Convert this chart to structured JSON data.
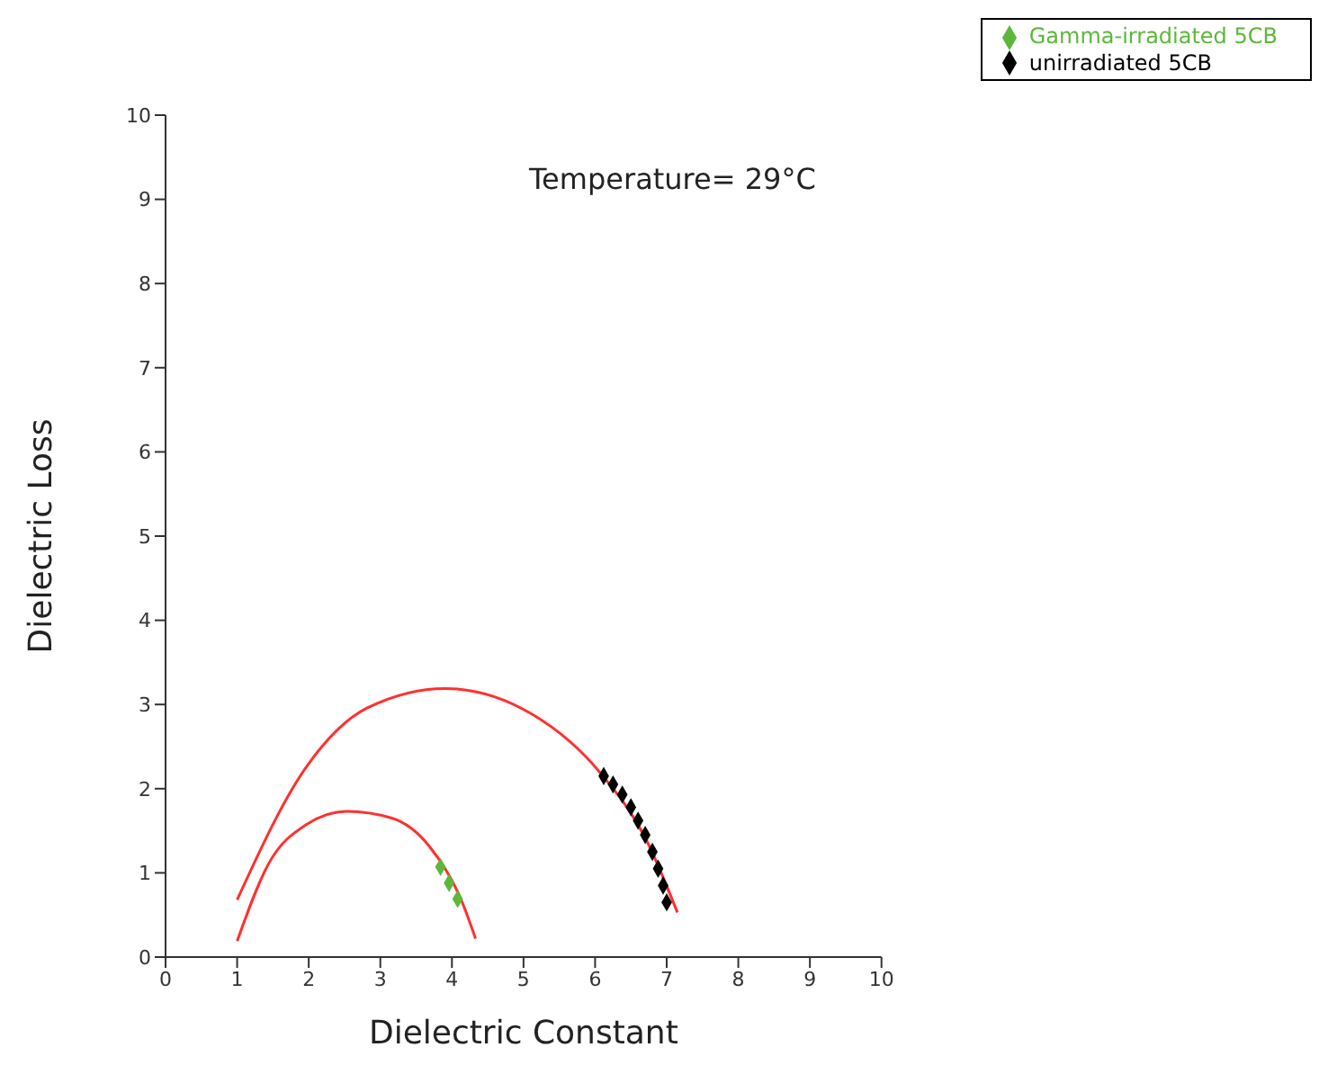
{
  "chart_data": {
    "type": "scatter",
    "xlabel": "Dielectric Constant",
    "ylabel": "Dielectric Loss",
    "annotations": [
      "Temperature= 29°C"
    ],
    "xlim": [
      0,
      10
    ],
    "ylim": [
      0,
      10
    ],
    "xticks": [
      0,
      1,
      2,
      3,
      4,
      5,
      6,
      7,
      8,
      9,
      10
    ],
    "yticks": [
      0,
      1,
      2,
      3,
      4,
      5,
      6,
      7,
      8,
      9,
      10
    ],
    "grid": false,
    "legend": "top right",
    "series": [
      {
        "name": "Gamma-irradiated  5CB",
        "color": "#5cb83a",
        "marker": "diamond",
        "x": [
          3.84,
          3.96,
          4.08
        ],
        "values": [
          1.07,
          0.88,
          0.69
        ]
      },
      {
        "name": "unirradiated 5CB",
        "color": "#000000",
        "marker": "diamond",
        "x": [
          6.12,
          6.25,
          6.38,
          6.5,
          6.6,
          6.7,
          6.8,
          6.88,
          6.95,
          7.0
        ],
        "values": [
          2.15,
          2.05,
          1.93,
          1.78,
          1.62,
          1.45,
          1.25,
          1.05,
          0.85,
          0.65
        ]
      },
      {
        "type": "line",
        "color": "#ff3030",
        "x": [
          1.0,
          1.44,
          1.96,
          2.53,
          3.16,
          3.68,
          4.13,
          4.33
        ],
        "values": [
          0.19,
          1.11,
          1.57,
          1.73,
          1.65,
          1.32,
          0.68,
          0.22
        ]
      },
      {
        "type": "line",
        "color": "#ff3030",
        "x": [
          1.0,
          1.96,
          2.82,
          3.91,
          5.11,
          6.08,
          6.71,
          7.15
        ],
        "values": [
          0.68,
          2.25,
          2.96,
          3.19,
          2.89,
          2.18,
          1.4,
          0.53
        ]
      }
    ]
  }
}
